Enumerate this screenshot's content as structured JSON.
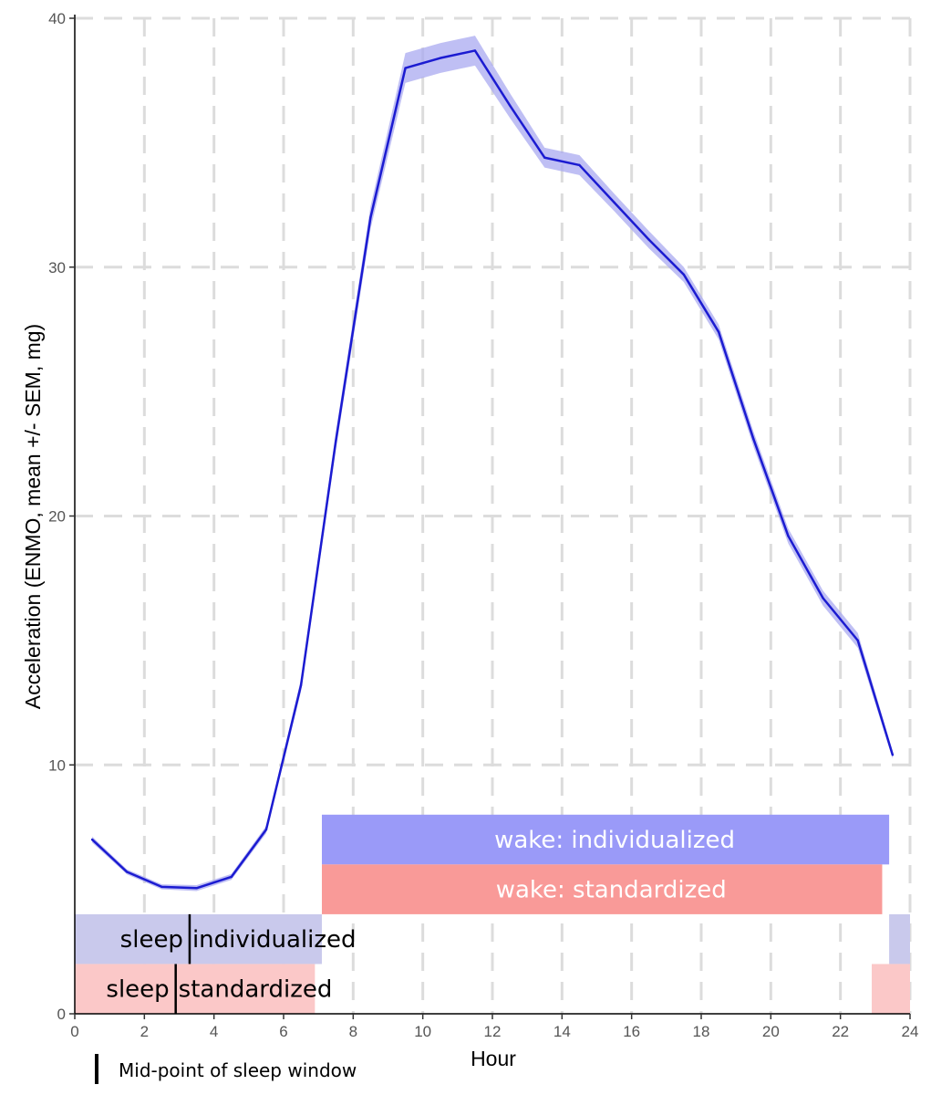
{
  "colors": {
    "line": "#1b1bd1",
    "ribbon": "#a9a9f0",
    "wake_individualized": "#9a9af8",
    "wake_standardized": "#f99a98",
    "sleep_individualized": "#c9c9ec",
    "sleep_standardized": "#fbc8c8",
    "grid": "#dcdcdc"
  },
  "chart_data": {
    "type": "line",
    "title": "",
    "xlabel": "Hour",
    "ylabel": "Acceleration (ENMO, mean +/- SEM, mg)",
    "xlim": [
      0,
      24
    ],
    "ylim": [
      0,
      40
    ],
    "x_ticks": [
      0,
      2,
      4,
      6,
      8,
      10,
      12,
      14,
      16,
      18,
      20,
      22,
      24
    ],
    "y_ticks": [
      0,
      10,
      20,
      30,
      40
    ],
    "grid": true,
    "series": [
      {
        "name": "ENMO mean",
        "x": [
          0.5,
          1.5,
          2.5,
          3.5,
          4.5,
          5.5,
          6.5,
          7.5,
          8.5,
          9.5,
          10.5,
          11.5,
          12.5,
          13.5,
          14.5,
          15.5,
          16.5,
          17.5,
          18.5,
          19.5,
          20.5,
          21.5,
          22.5,
          23.5
        ],
        "y": [
          7.0,
          5.7,
          5.1,
          5.05,
          5.5,
          7.4,
          13.2,
          23.0,
          32.0,
          38.0,
          38.4,
          38.7,
          36.5,
          34.4,
          34.1,
          32.6,
          31.1,
          29.7,
          27.4,
          23.1,
          19.2,
          16.7,
          15.0,
          10.4
        ],
        "sem": [
          0.12,
          0.1,
          0.1,
          0.12,
          0.12,
          0.15,
          0.25,
          0.35,
          0.45,
          0.6,
          0.6,
          0.6,
          0.5,
          0.4,
          0.4,
          0.35,
          0.35,
          0.3,
          0.3,
          0.3,
          0.3,
          0.3,
          0.3,
          0.15
        ]
      }
    ],
    "bands": [
      {
        "label": "wake: individualized",
        "start": 7.1,
        "end": 23.4,
        "bottom": 6.0,
        "top": 8.0,
        "color": "wake_individualized",
        "text": "light"
      },
      {
        "label": "wake: standardized",
        "start": 7.1,
        "end": 23.2,
        "bottom": 4.0,
        "top": 6.0,
        "color": "wake_standardized",
        "text": "light"
      },
      {
        "label": "sleep individualized",
        "segments": [
          [
            0,
            7.1
          ],
          [
            23.4,
            24
          ]
        ],
        "bottom": 2.0,
        "top": 4.0,
        "color": "sleep_individualized",
        "midpoint": 3.3,
        "left_text": "sleep",
        "right_text": "individualized"
      },
      {
        "label": "sleep standardized",
        "segments": [
          [
            0,
            6.9
          ],
          [
            22.9,
            24
          ]
        ],
        "bottom": 0.0,
        "top": 2.0,
        "color": "sleep_standardized",
        "midpoint": 2.9,
        "left_text": "sleep",
        "right_text": "standardized"
      }
    ],
    "legend": {
      "marker": "vertical bar",
      "label": "Mid-point of sleep window",
      "placement": "bottom-left"
    }
  }
}
